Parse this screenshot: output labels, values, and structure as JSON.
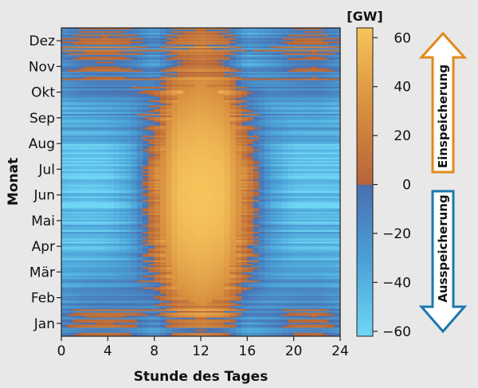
{
  "chart_data": {
    "type": "heatmap",
    "title": "",
    "xlabel": "Stunde des Tages",
    "ylabel": "Monat",
    "x_range": [
      0,
      24
    ],
    "x_ticks": [
      "0",
      "4",
      "8",
      "12",
      "16",
      "20",
      "24"
    ],
    "y_categories": [
      "Jan",
      "Feb",
      "Mär",
      "Apr",
      "Mai",
      "Jun",
      "Jul",
      "Aug",
      "Sep",
      "Okt",
      "Nov",
      "Dez"
    ],
    "colorbar": {
      "unit": "[GW]",
      "range": [
        -62,
        64
      ],
      "ticks": [
        "60",
        "40",
        "20",
        "0",
        "−20",
        "−40",
        "−60"
      ],
      "tick_values": [
        60,
        40,
        20,
        0,
        -20,
        -40,
        -60
      ],
      "colors_positive": [
        "#b5643a",
        "#d9913f",
        "#f7c45c"
      ],
      "colors_negative": [
        "#4a6fb0",
        "#4aa0d6",
        "#6fd6f5"
      ]
    },
    "typical_daily_profile": {
      "hours": [
        0,
        2,
        4,
        6,
        8,
        10,
        12,
        14,
        16,
        18,
        20,
        22,
        24
      ],
      "summer_GW": [
        -50,
        -55,
        -52,
        -35,
        20,
        60,
        64,
        60,
        20,
        -30,
        -50,
        -52,
        -50
      ],
      "winter_GW": [
        -10,
        5,
        8,
        0,
        -20,
        10,
        20,
        10,
        -25,
        -15,
        0,
        5,
        -10
      ]
    },
    "charge_arrow": {
      "label": "Einspeicherung",
      "color": "#e08a1a"
    },
    "discharge_arrow": {
      "label": "Ausspeicherung",
      "color": "#1a78b0"
    }
  }
}
